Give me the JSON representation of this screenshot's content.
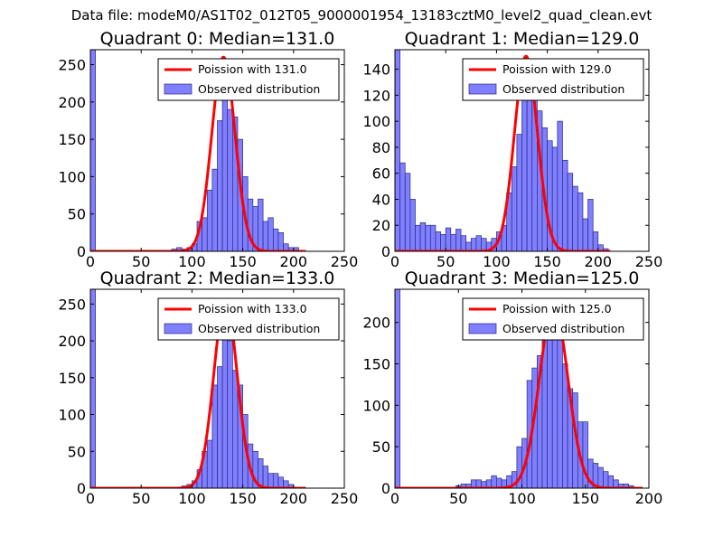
{
  "figure": {
    "suptitle": "Data file: modeM0/AS1T02_012T05_9000001954_13183cztM0_level2_quad_clean.evt",
    "colors": {
      "bar_fill": "#7f7fff",
      "bar_edge": "#2a2a80",
      "line": "#ff0000",
      "axes": "#000000",
      "legend_edge": "#000000"
    }
  },
  "chart_data": [
    {
      "type": "bar",
      "title": "Quadrant 0: Median=131.0",
      "xlim": [
        0,
        250
      ],
      "ylim": [
        0,
        270
      ],
      "xticks": [
        0,
        50,
        100,
        150,
        200,
        250
      ],
      "yticks": [
        0,
        50,
        100,
        150,
        200,
        250
      ],
      "legend": {
        "line_label": "Poission with 131.0",
        "bar_label": "Observed distribution",
        "position": "top-right"
      },
      "bin_width": 5,
      "bins": [
        {
          "x": 0,
          "h": 270
        },
        {
          "x": 80,
          "h": 3
        },
        {
          "x": 85,
          "h": 5
        },
        {
          "x": 90,
          "h": 3
        },
        {
          "x": 95,
          "h": 5
        },
        {
          "x": 100,
          "h": 10
        },
        {
          "x": 105,
          "h": 40
        },
        {
          "x": 110,
          "h": 45
        },
        {
          "x": 115,
          "h": 82
        },
        {
          "x": 120,
          "h": 110
        },
        {
          "x": 125,
          "h": 175
        },
        {
          "x": 130,
          "h": 225
        },
        {
          "x": 135,
          "h": 190
        },
        {
          "x": 140,
          "h": 180
        },
        {
          "x": 145,
          "h": 150
        },
        {
          "x": 150,
          "h": 100
        },
        {
          "x": 155,
          "h": 70
        },
        {
          "x": 160,
          "h": 60
        },
        {
          "x": 165,
          "h": 70
        },
        {
          "x": 170,
          "h": 40
        },
        {
          "x": 175,
          "h": 45
        },
        {
          "x": 180,
          "h": 30
        },
        {
          "x": 185,
          "h": 25
        },
        {
          "x": 190,
          "h": 10
        },
        {
          "x": 195,
          "h": 5
        },
        {
          "x": 200,
          "h": 5
        }
      ],
      "poisson": {
        "mean": 131.0,
        "peak": 260,
        "start": 0,
        "end": 212
      }
    },
    {
      "type": "bar",
      "title": "Quadrant 1: Median=129.0",
      "xlim": [
        0,
        250
      ],
      "ylim": [
        0,
        155
      ],
      "xticks": [
        0,
        50,
        100,
        150,
        200,
        250
      ],
      "yticks": [
        0,
        20,
        40,
        60,
        80,
        100,
        120,
        140
      ],
      "legend": {
        "line_label": "Poission with 129.0",
        "bar_label": "Observed distribution",
        "position": "top-right"
      },
      "bin_width": 5,
      "bins": [
        {
          "x": 0,
          "h": 155
        },
        {
          "x": 5,
          "h": 68
        },
        {
          "x": 10,
          "h": 60
        },
        {
          "x": 15,
          "h": 40
        },
        {
          "x": 20,
          "h": 20
        },
        {
          "x": 25,
          "h": 22
        },
        {
          "x": 30,
          "h": 20
        },
        {
          "x": 35,
          "h": 20
        },
        {
          "x": 40,
          "h": 15
        },
        {
          "x": 45,
          "h": 13
        },
        {
          "x": 50,
          "h": 18
        },
        {
          "x": 55,
          "h": 13
        },
        {
          "x": 60,
          "h": 17
        },
        {
          "x": 65,
          "h": 12
        },
        {
          "x": 70,
          "h": 7
        },
        {
          "x": 75,
          "h": 10
        },
        {
          "x": 80,
          "h": 12
        },
        {
          "x": 85,
          "h": 10
        },
        {
          "x": 90,
          "h": 7
        },
        {
          "x": 95,
          "h": 10
        },
        {
          "x": 100,
          "h": 15
        },
        {
          "x": 105,
          "h": 20
        },
        {
          "x": 110,
          "h": 45
        },
        {
          "x": 115,
          "h": 65
        },
        {
          "x": 120,
          "h": 90
        },
        {
          "x": 125,
          "h": 125
        },
        {
          "x": 130,
          "h": 145
        },
        {
          "x": 135,
          "h": 140
        },
        {
          "x": 140,
          "h": 108
        },
        {
          "x": 145,
          "h": 95
        },
        {
          "x": 150,
          "h": 85
        },
        {
          "x": 155,
          "h": 80
        },
        {
          "x": 160,
          "h": 100
        },
        {
          "x": 165,
          "h": 70
        },
        {
          "x": 170,
          "h": 60
        },
        {
          "x": 175,
          "h": 50
        },
        {
          "x": 180,
          "h": 45
        },
        {
          "x": 185,
          "h": 25
        },
        {
          "x": 190,
          "h": 40
        },
        {
          "x": 195,
          "h": 15
        },
        {
          "x": 200,
          "h": 5
        },
        {
          "x": 205,
          "h": 2
        }
      ],
      "poisson": {
        "mean": 129.0,
        "peak": 150,
        "start": 0,
        "end": 212
      }
    },
    {
      "type": "bar",
      "title": "Quadrant 2: Median=133.0",
      "xlim": [
        0,
        250
      ],
      "ylim": [
        0,
        270
      ],
      "xticks": [
        0,
        50,
        100,
        150,
        200,
        250
      ],
      "yticks": [
        0,
        50,
        100,
        150,
        200,
        250
      ],
      "legend": {
        "line_label": "Poission with 133.0",
        "bar_label": "Observed distribution",
        "position": "top-right"
      },
      "bin_width": 5,
      "bins": [
        {
          "x": 0,
          "h": 270
        },
        {
          "x": 90,
          "h": 3
        },
        {
          "x": 95,
          "h": 5
        },
        {
          "x": 100,
          "h": 10
        },
        {
          "x": 105,
          "h": 25
        },
        {
          "x": 110,
          "h": 50
        },
        {
          "x": 115,
          "h": 65
        },
        {
          "x": 120,
          "h": 140
        },
        {
          "x": 125,
          "h": 165
        },
        {
          "x": 130,
          "h": 240
        },
        {
          "x": 135,
          "h": 200
        },
        {
          "x": 140,
          "h": 160
        },
        {
          "x": 145,
          "h": 140
        },
        {
          "x": 150,
          "h": 100
        },
        {
          "x": 155,
          "h": 60
        },
        {
          "x": 160,
          "h": 50
        },
        {
          "x": 165,
          "h": 40
        },
        {
          "x": 170,
          "h": 30
        },
        {
          "x": 175,
          "h": 20
        },
        {
          "x": 180,
          "h": 20
        },
        {
          "x": 185,
          "h": 15
        },
        {
          "x": 190,
          "h": 10
        },
        {
          "x": 195,
          "h": 5
        }
      ],
      "poisson": {
        "mean": 133.0,
        "peak": 255,
        "start": 0,
        "end": 212
      }
    },
    {
      "type": "bar",
      "title": "Quadrant 3: Median=125.0",
      "xlim": [
        0,
        200
      ],
      "ylim": [
        0,
        240
      ],
      "xticks": [
        0,
        50,
        100,
        150,
        200
      ],
      "yticks": [
        0,
        50,
        100,
        150,
        200
      ],
      "legend": {
        "line_label": "Poission with 125.0",
        "bar_label": "Observed distribution",
        "position": "top-right"
      },
      "bin_width": 4,
      "bins": [
        {
          "x": 0,
          "h": 240
        },
        {
          "x": 48,
          "h": 3
        },
        {
          "x": 52,
          "h": 5
        },
        {
          "x": 56,
          "h": 5
        },
        {
          "x": 60,
          "h": 10
        },
        {
          "x": 64,
          "h": 10
        },
        {
          "x": 68,
          "h": 8
        },
        {
          "x": 72,
          "h": 10
        },
        {
          "x": 76,
          "h": 15
        },
        {
          "x": 80,
          "h": 12
        },
        {
          "x": 84,
          "h": 10
        },
        {
          "x": 88,
          "h": 15
        },
        {
          "x": 92,
          "h": 20
        },
        {
          "x": 96,
          "h": 50
        },
        {
          "x": 100,
          "h": 60
        },
        {
          "x": 104,
          "h": 130
        },
        {
          "x": 108,
          "h": 145
        },
        {
          "x": 112,
          "h": 160
        },
        {
          "x": 116,
          "h": 200
        },
        {
          "x": 120,
          "h": 210
        },
        {
          "x": 124,
          "h": 225
        },
        {
          "x": 128,
          "h": 200
        },
        {
          "x": 132,
          "h": 150
        },
        {
          "x": 136,
          "h": 120
        },
        {
          "x": 140,
          "h": 115
        },
        {
          "x": 144,
          "h": 80
        },
        {
          "x": 148,
          "h": 80
        },
        {
          "x": 152,
          "h": 35
        },
        {
          "x": 156,
          "h": 30
        },
        {
          "x": 160,
          "h": 25
        },
        {
          "x": 164,
          "h": 20
        },
        {
          "x": 168,
          "h": 15
        },
        {
          "x": 172,
          "h": 10
        },
        {
          "x": 176,
          "h": 5
        },
        {
          "x": 180,
          "h": 5
        },
        {
          "x": 184,
          "h": 3
        }
      ],
      "poisson": {
        "mean": 125.0,
        "peak": 220,
        "start": 0,
        "end": 195
      }
    }
  ]
}
